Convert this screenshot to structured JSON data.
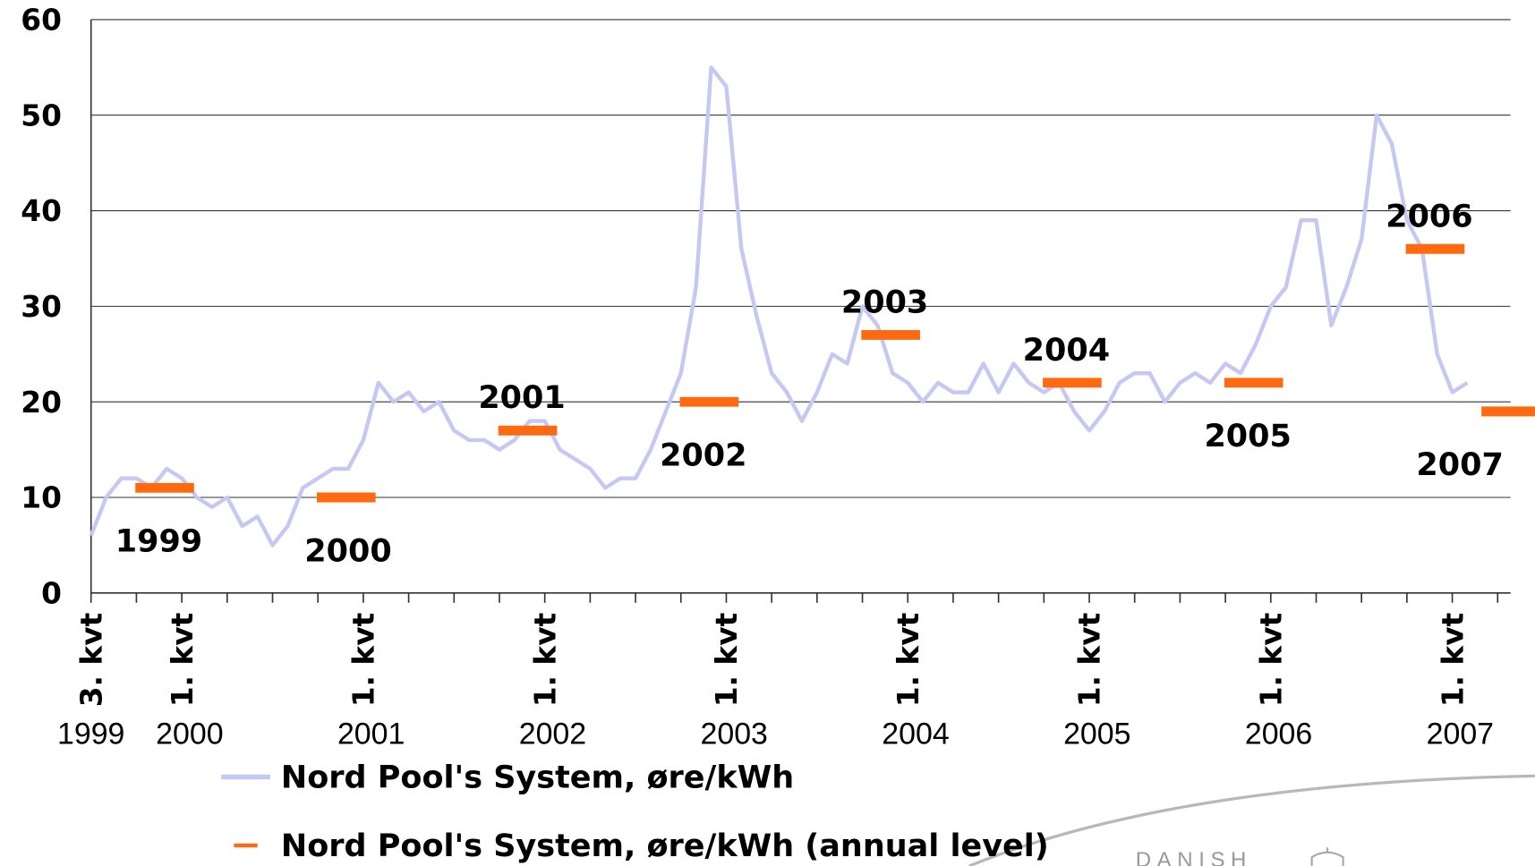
{
  "chart_data": {
    "type": "line",
    "categories": [
      "3. kvt",
      null,
      null,
      null,
      null,
      null,
      "1. kvt",
      null,
      null,
      null,
      null,
      null,
      null,
      null,
      null,
      null,
      null,
      null,
      "1. kvt",
      null,
      null,
      null,
      null,
      null,
      null,
      null,
      null,
      null,
      null,
      null,
      "1. kvt",
      null,
      null,
      null,
      null,
      null,
      null,
      null,
      null,
      null,
      null,
      null,
      "1. kvt",
      null,
      null,
      null,
      null,
      null,
      null,
      null,
      null,
      null,
      null,
      null,
      "1. kvt",
      null,
      null,
      null,
      null,
      null,
      null,
      null,
      null,
      null,
      null,
      null,
      "1. kvt",
      null,
      null,
      null,
      null,
      null,
      null,
      null,
      null,
      null,
      null,
      null,
      "1. kvt",
      null,
      null,
      null,
      null,
      null,
      null,
      null,
      null,
      null,
      null,
      null,
      "1. kvt",
      null,
      null,
      null,
      null
    ],
    "category_years": [
      "1999",
      null,
      null,
      null,
      null,
      null,
      "2000",
      null,
      null,
      null,
      null,
      null,
      null,
      null,
      null,
      null,
      null,
      null,
      "2001",
      null,
      null,
      null,
      null,
      null,
      null,
      null,
      null,
      null,
      null,
      null,
      "2002",
      null,
      null,
      null,
      null,
      null,
      null,
      null,
      null,
      null,
      null,
      null,
      "2003",
      null,
      null,
      null,
      null,
      null,
      null,
      null,
      null,
      null,
      null,
      null,
      "2004",
      null,
      null,
      null,
      null,
      null,
      null,
      null,
      null,
      null,
      null,
      null,
      "2005",
      null,
      null,
      null,
      null,
      null,
      null,
      null,
      null,
      null,
      null,
      null,
      "2006",
      null,
      null,
      null,
      null,
      null,
      null,
      null,
      null,
      null,
      null,
      null,
      "2007",
      null,
      null,
      null,
      null
    ],
    "series": [
      {
        "name": "Nord Pool's System, øre/kWh",
        "color": "#c5c8f2",
        "values": [
          6,
          10,
          12,
          12,
          11,
          13,
          12,
          10,
          9,
          10,
          7,
          8,
          5,
          7,
          11,
          12,
          13,
          13,
          16,
          22,
          20,
          21,
          19,
          20,
          17,
          16,
          16,
          15,
          16,
          18,
          18,
          15,
          14,
          13,
          11,
          12,
          12,
          15,
          19,
          23,
          32,
          55,
          53,
          36,
          29,
          23,
          21,
          18,
          21,
          25,
          24,
          30,
          28,
          23,
          22,
          20,
          22,
          21,
          21,
          24,
          21,
          24,
          22,
          21,
          22,
          19,
          17,
          19,
          22,
          23,
          23,
          20,
          22,
          23,
          22,
          24,
          23,
          26,
          30,
          32,
          39,
          39,
          28,
          32,
          37,
          50,
          47,
          39,
          36,
          25,
          21,
          22,
          null,
          null,
          null
        ]
      },
      {
        "name": "Nord Pool's System, øre/kWh (annual level)",
        "color": "#ff6a10",
        "values": [
          null,
          null,
          null,
          null,
          null,
          11,
          null,
          null,
          null,
          null,
          null,
          null,
          null,
          null,
          null,
          null,
          null,
          10,
          null,
          null,
          null,
          null,
          null,
          null,
          null,
          null,
          null,
          null,
          null,
          17,
          null,
          null,
          null,
          null,
          null,
          null,
          null,
          null,
          null,
          null,
          null,
          20,
          null,
          null,
          null,
          null,
          null,
          null,
          null,
          null,
          null,
          null,
          null,
          27,
          null,
          null,
          null,
          null,
          null,
          null,
          null,
          null,
          null,
          null,
          null,
          22,
          null,
          null,
          null,
          null,
          null,
          null,
          null,
          null,
          null,
          null,
          null,
          22,
          null,
          null,
          null,
          null,
          null,
          null,
          null,
          null,
          null,
          null,
          null,
          36,
          null,
          null,
          null,
          null,
          19
        ],
        "value_labels": [
          null,
          null,
          null,
          null,
          null,
          "1999",
          null,
          null,
          null,
          null,
          null,
          null,
          null,
          null,
          null,
          null,
          null,
          "2000",
          null,
          null,
          null,
          null,
          null,
          null,
          null,
          null,
          null,
          null,
          null,
          "2001",
          null,
          null,
          null,
          null,
          null,
          null,
          null,
          null,
          null,
          null,
          null,
          "2002",
          null,
          null,
          null,
          null,
          null,
          null,
          null,
          null,
          null,
          null,
          null,
          "2003",
          null,
          null,
          null,
          null,
          null,
          null,
          null,
          null,
          null,
          null,
          null,
          "2004",
          null,
          null,
          null,
          null,
          null,
          null,
          null,
          null,
          null,
          null,
          null,
          "2005",
          null,
          null,
          null,
          null,
          null,
          null,
          null,
          null,
          null,
          null,
          null,
          "2006",
          null,
          null,
          null,
          null,
          "2007"
        ]
      }
    ],
    "ylim": [
      0,
      60
    ],
    "yticks": [
      0,
      10,
      20,
      30,
      40,
      50,
      60
    ],
    "grid": true,
    "logo_text": "DANISH"
  }
}
